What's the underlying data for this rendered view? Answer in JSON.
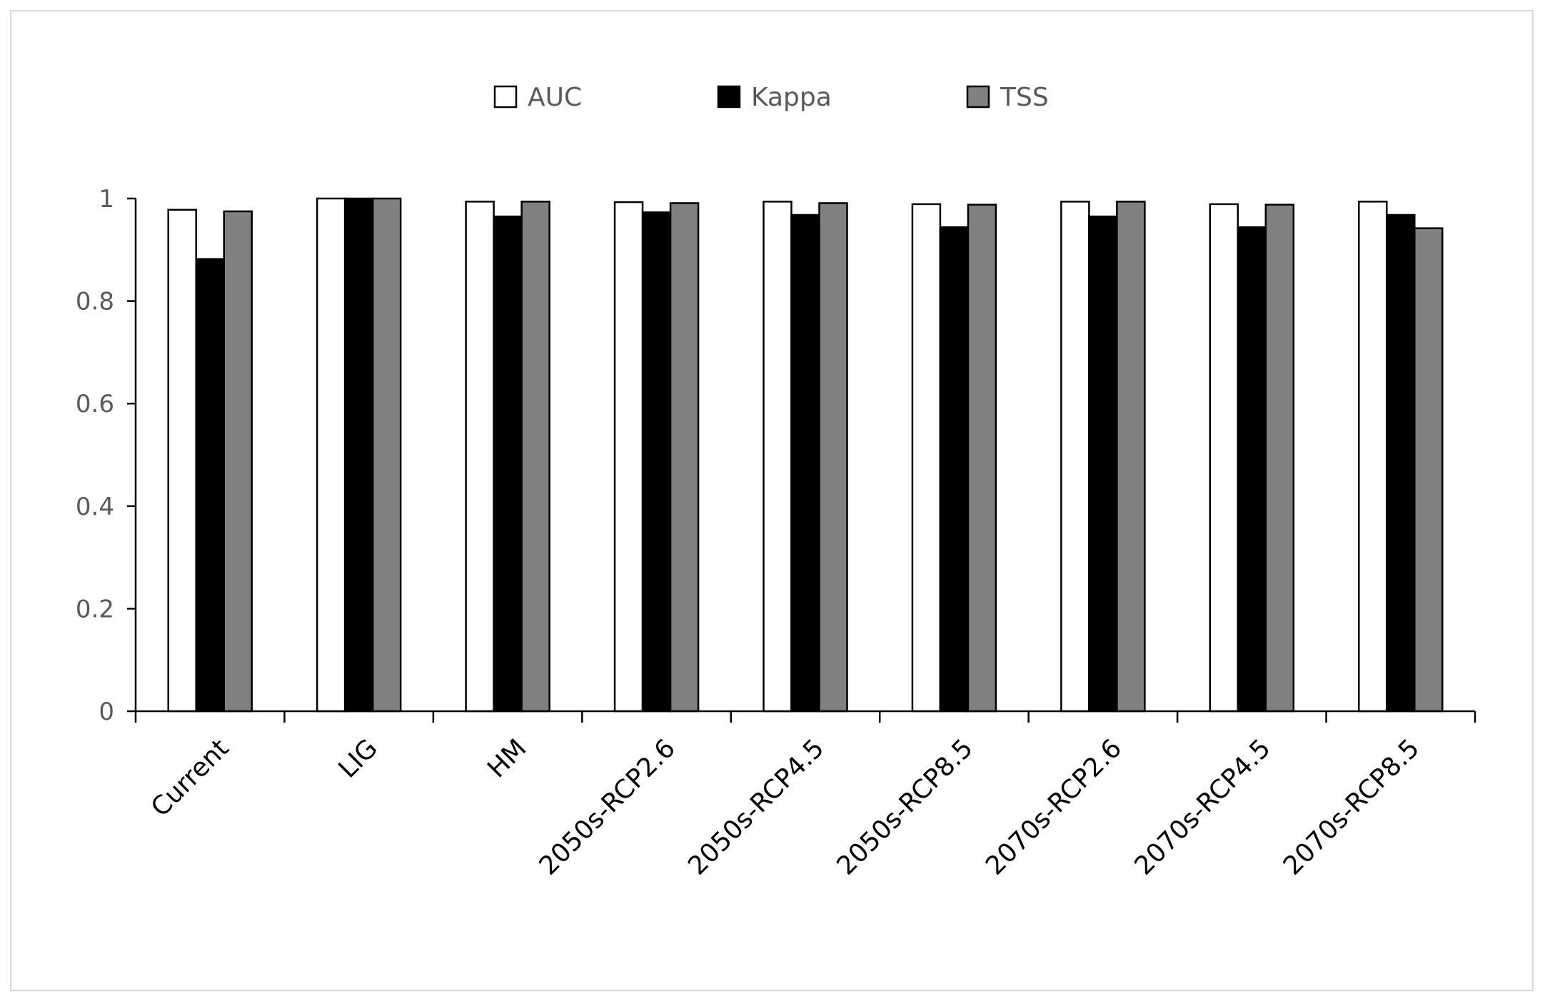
{
  "chart_data": {
    "type": "bar",
    "title": "",
    "xlabel": "",
    "ylabel": "",
    "ylim": [
      0,
      1
    ],
    "yticks": [
      "0",
      "0.2",
      "0.4",
      "0.6",
      "0.8",
      "1"
    ],
    "grid": false,
    "legend_position": "top-center",
    "categories": [
      "Current",
      "LIG",
      "HM",
      "2050s-RCP2.6",
      "2050s-RCP4.5",
      "2050s-RCP8.5",
      "2070s-RCP2.6",
      "2070s-RCP4.5",
      "2070s-RCP8.5"
    ],
    "series": [
      {
        "name": "AUC",
        "color": "#ffffff",
        "values": [
          0.978,
          1.0,
          0.994,
          0.993,
          0.994,
          0.989,
          0.994,
          0.989,
          0.994
        ]
      },
      {
        "name": "Kappa",
        "color": "#000000",
        "values": [
          0.882,
          1.0,
          0.965,
          0.973,
          0.968,
          0.944,
          0.965,
          0.944,
          0.968
        ]
      },
      {
        "name": "TSS",
        "color": "#808080",
        "values": [
          0.975,
          1.0,
          0.994,
          0.991,
          0.991,
          0.988,
          0.994,
          0.988,
          0.942
        ]
      }
    ]
  }
}
